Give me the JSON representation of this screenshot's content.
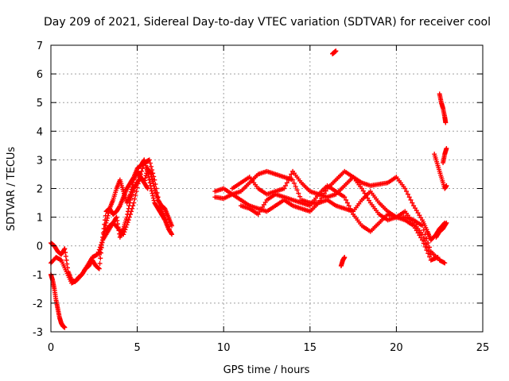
{
  "chart_data": {
    "type": "scatter",
    "title": "Day 209 of 2021, Sidereal Day-to-day VTEC variation (SDTVAR) for receiver cool",
    "xlabel": "GPS time / hours",
    "ylabel": "SDTVAR / TECUs",
    "xlim": [
      0,
      25
    ],
    "ylim": [
      -3,
      7
    ],
    "x_ticks": [
      0,
      5,
      10,
      15,
      20,
      25
    ],
    "x_tick_labels": [
      "0",
      "5",
      "10",
      "15",
      "20",
      "25"
    ],
    "y_ticks": [
      -3,
      -2,
      -1,
      0,
      1,
      2,
      3,
      4,
      5,
      6,
      7
    ],
    "y_tick_labels": [
      "-3",
      "-2",
      "-1",
      "0",
      "1",
      "2",
      "3",
      "4",
      "5",
      "6",
      "7"
    ],
    "grid": true,
    "marker": "+",
    "series_color": "#ff0000",
    "series": [
      {
        "name": "SDTVAR",
        "x": [
          0.0,
          0.1,
          0.2,
          0.3,
          0.4,
          0.5,
          0.6,
          0.7,
          0.8
        ],
        "y": [
          -1.0,
          -1.2,
          -1.5,
          -1.9,
          -2.2,
          -2.5,
          -2.7,
          -2.8,
          -2.85
        ]
      },
      {
        "name": "SDTVAR",
        "x": [
          0.0,
          0.2,
          0.4,
          0.6,
          0.8,
          1.0,
          1.2,
          1.4,
          1.6,
          1.8,
          2.0,
          2.2,
          2.4,
          2.6,
          2.8,
          3.0,
          3.2,
          3.4,
          3.6,
          3.8,
          4.0,
          4.2,
          4.4,
          4.6,
          4.8,
          5.0,
          5.2,
          5.4,
          5.6,
          5.8,
          6.0,
          6.2,
          6.4,
          6.6,
          6.8,
          7.0
        ],
        "y": [
          0.1,
          0.0,
          -0.2,
          -0.3,
          -0.1,
          -0.9,
          -1.2,
          -1.25,
          -1.1,
          -1.0,
          -0.8,
          -0.7,
          -0.5,
          -0.7,
          -0.8,
          0.3,
          1.2,
          1.3,
          1.1,
          1.2,
          1.4,
          1.7,
          2.0,
          2.2,
          2.4,
          2.7,
          2.8,
          3.0,
          2.6,
          2.0,
          1.5,
          1.3,
          1.1,
          0.9,
          0.6,
          0.4
        ]
      },
      {
        "name": "SDTVAR",
        "x": [
          0.0,
          0.3,
          0.6,
          0.9,
          1.2,
          1.5,
          1.8,
          2.1,
          2.4,
          2.7,
          3.0,
          3.3,
          3.6,
          3.9,
          4.2,
          4.5,
          4.8,
          5.1,
          5.4,
          5.7,
          6.0,
          6.3,
          6.6,
          6.9
        ],
        "y": [
          -0.6,
          -0.4,
          -0.5,
          -0.9,
          -1.3,
          -1.2,
          -1.0,
          -0.7,
          -0.4,
          -0.3,
          0.2,
          0.5,
          0.8,
          0.6,
          0.4,
          0.9,
          1.5,
          2.3,
          2.9,
          3.0,
          2.3,
          1.4,
          1.0,
          0.5
        ]
      },
      {
        "name": "SDTVAR",
        "x": [
          2.8,
          3.0,
          3.2,
          3.4,
          3.6,
          3.8,
          4.0,
          4.2,
          4.4,
          4.6,
          4.8,
          5.0,
          5.2,
          5.4,
          5.6,
          5.8,
          6.0,
          6.2,
          6.4,
          6.6,
          6.8,
          7.0
        ],
        "y": [
          -0.3,
          0.2,
          0.8,
          1.3,
          1.6,
          2.0,
          2.3,
          1.9,
          1.5,
          1.8,
          2.3,
          2.6,
          2.4,
          2.2,
          2.7,
          2.5,
          2.0,
          1.6,
          1.4,
          1.3,
          1.0,
          0.7
        ]
      },
      {
        "name": "SDTVAR",
        "x": [
          3.2,
          3.4,
          3.6,
          3.8,
          4.0,
          4.2,
          4.4,
          4.6,
          4.8,
          5.0,
          5.2,
          5.4,
          5.6
        ],
        "y": [
          0.5,
          0.7,
          0.8,
          1.0,
          0.3,
          0.6,
          1.0,
          1.6,
          2.0,
          2.2,
          2.4,
          2.2,
          2.0
        ]
      },
      {
        "name": "SDTVAR",
        "x": [
          9.5,
          10.0,
          10.5,
          11.0,
          11.5,
          12.0,
          12.5,
          13.0,
          13.5,
          14.0,
          14.5,
          15.0,
          15.5,
          16.0,
          16.5,
          17.0,
          17.5,
          18.0,
          18.5,
          19.0,
          19.5,
          20.0,
          20.5,
          21.0,
          21.5,
          21.8,
          22.0,
          22.3,
          22.5,
          22.8
        ],
        "y": [
          1.7,
          1.65,
          1.8,
          1.9,
          2.2,
          2.5,
          2.6,
          2.5,
          2.4,
          2.3,
          1.6,
          1.5,
          1.5,
          2.0,
          2.3,
          2.6,
          2.4,
          2.2,
          2.1,
          2.15,
          2.2,
          2.4,
          2.0,
          1.4,
          0.9,
          0.5,
          0.2,
          0.4,
          0.6,
          0.8
        ]
      },
      {
        "name": "SDTVAR",
        "x": [
          9.5,
          10.0,
          10.5,
          11.0,
          11.5,
          12.0,
          12.5,
          13.0,
          13.5,
          14.0,
          14.5,
          15.0,
          15.5,
          16.0,
          16.5,
          17.0,
          17.5,
          18.0,
          18.5,
          19.0,
          19.5,
          20.0,
          20.5,
          21.0,
          21.5,
          22.0,
          22.5,
          22.8
        ],
        "y": [
          1.9,
          2.0,
          1.8,
          1.6,
          1.4,
          1.3,
          1.2,
          1.4,
          1.6,
          1.4,
          1.3,
          1.2,
          1.5,
          1.6,
          1.4,
          1.3,
          1.2,
          1.6,
          1.9,
          1.5,
          1.2,
          1.0,
          1.0,
          0.9,
          0.7,
          -0.2,
          -0.5,
          -0.6
        ]
      },
      {
        "name": "SDTVAR",
        "x": [
          10.5,
          11.0,
          11.5,
          12.0,
          12.5,
          13.0,
          13.5,
          14.0,
          14.5,
          15.0,
          15.5,
          16.0,
          16.5,
          17.0,
          17.5,
          18.0,
          18.5,
          19.0,
          19.5,
          20.0,
          20.5,
          21.0,
          21.5,
          22.0
        ],
        "y": [
          2.0,
          2.2,
          2.4,
          2.0,
          1.8,
          1.9,
          2.0,
          2.6,
          2.2,
          1.9,
          1.8,
          1.7,
          1.8,
          2.1,
          2.4,
          2.0,
          1.5,
          1.1,
          0.9,
          1.0,
          1.2,
          0.8,
          0.4,
          -0.3
        ]
      },
      {
        "name": "SDTVAR",
        "x": [
          11.0,
          11.5,
          12.0,
          12.5,
          13.0,
          13.5,
          14.0,
          14.5,
          15.0,
          15.5,
          16.0,
          16.5,
          17.0,
          17.5,
          18.0,
          18.5,
          19.0,
          19.5,
          20.0,
          20.5,
          21.0,
          21.5,
          22.0,
          22.4
        ],
        "y": [
          1.4,
          1.3,
          1.1,
          1.6,
          1.8,
          1.7,
          1.6,
          1.5,
          1.4,
          1.8,
          2.1,
          1.9,
          1.7,
          1.1,
          0.7,
          0.5,
          0.8,
          1.1,
          1.0,
          0.9,
          0.7,
          0.2,
          -0.5,
          -0.4
        ]
      },
      {
        "name": "SDTVAR",
        "x": [
          16.3,
          16.4,
          16.5
        ],
        "y": [
          6.7,
          6.75,
          6.8
        ]
      },
      {
        "name": "SDTVAR",
        "x": [
          16.8,
          16.9,
          17.0
        ],
        "y": [
          -0.7,
          -0.5,
          -0.4
        ]
      },
      {
        "name": "SDTVAR",
        "x": [
          22.5,
          22.6,
          22.7,
          22.8,
          22.85
        ],
        "y": [
          5.3,
          5.0,
          4.8,
          4.5,
          4.3
        ]
      },
      {
        "name": "SDTVAR",
        "x": [
          22.2,
          22.4,
          22.6,
          22.8,
          22.9
        ],
        "y": [
          3.2,
          2.8,
          2.4,
          2.0,
          2.1
        ]
      },
      {
        "name": "SDTVAR",
        "x": [
          22.7,
          22.8,
          22.9
        ],
        "y": [
          2.9,
          3.2,
          3.4
        ]
      },
      {
        "name": "SDTVAR",
        "x": [
          22.3,
          22.5,
          22.7,
          22.9
        ],
        "y": [
          0.3,
          0.5,
          0.6,
          0.8
        ]
      }
    ]
  }
}
